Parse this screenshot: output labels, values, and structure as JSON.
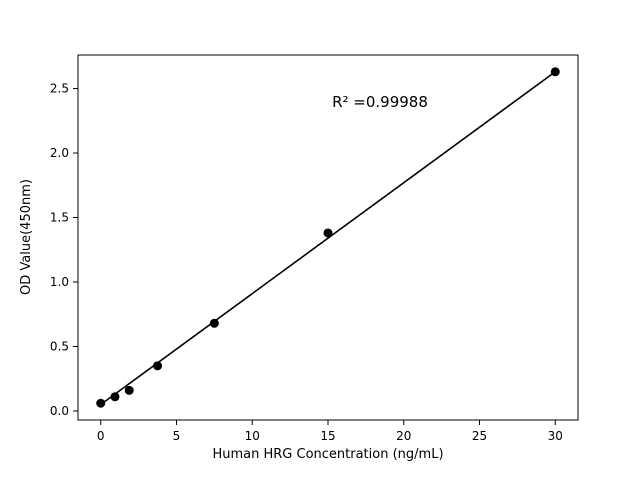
{
  "chart_data": {
    "type": "scatter",
    "title": "",
    "xlabel": "Human HRG Concentration (ng/mL)",
    "ylabel": "OD Value(450nm)",
    "annotation": {
      "text": "R² =0.99988"
    },
    "points": {
      "x": [
        0,
        0.94,
        1.88,
        3.75,
        7.5,
        15,
        30
      ],
      "y": [
        0.06,
        0.11,
        0.16,
        0.35,
        0.68,
        1.38,
        2.63
      ]
    },
    "fit_line": {
      "x_start": 0,
      "x_end": 30,
      "slope": 0.086,
      "intercept": 0.05
    },
    "x_ticks": [
      0,
      5,
      10,
      15,
      20,
      25,
      30
    ],
    "y_ticks": [
      0.0,
      0.5,
      1.0,
      1.5,
      2.0,
      2.5
    ],
    "xlim": [
      -1.5,
      31.5
    ],
    "ylim": [
      -0.07,
      2.76
    ],
    "legend": "off",
    "grid": "off",
    "marker_color": "#000000",
    "line_color": "#000000",
    "background": "#ffffff"
  }
}
